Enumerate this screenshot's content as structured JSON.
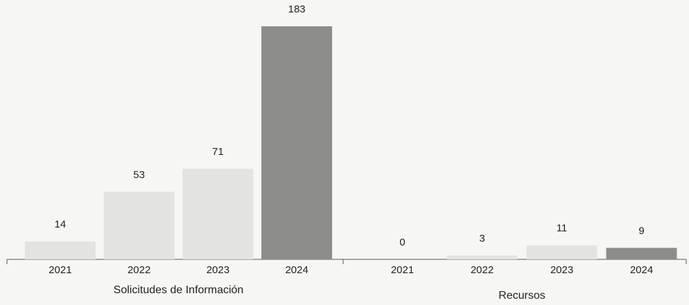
{
  "chart_data": [
    {
      "type": "bar",
      "title": "Solicitudes de Información",
      "categories": [
        "2021",
        "2022",
        "2023",
        "2024"
      ],
      "values": [
        14,
        53,
        71,
        183
      ],
      "colors": [
        "#e3e3e1",
        "#e3e3e1",
        "#e3e3e1",
        "#8c8c8a"
      ]
    },
    {
      "type": "bar",
      "title": "Recursos",
      "categories": [
        "2021",
        "2022",
        "2023",
        "2024"
      ],
      "values": [
        0,
        3,
        11,
        9
      ],
      "colors": [
        "#e3e3e1",
        "#e3e3e1",
        "#e3e3e1",
        "#8c8c8a"
      ]
    }
  ]
}
